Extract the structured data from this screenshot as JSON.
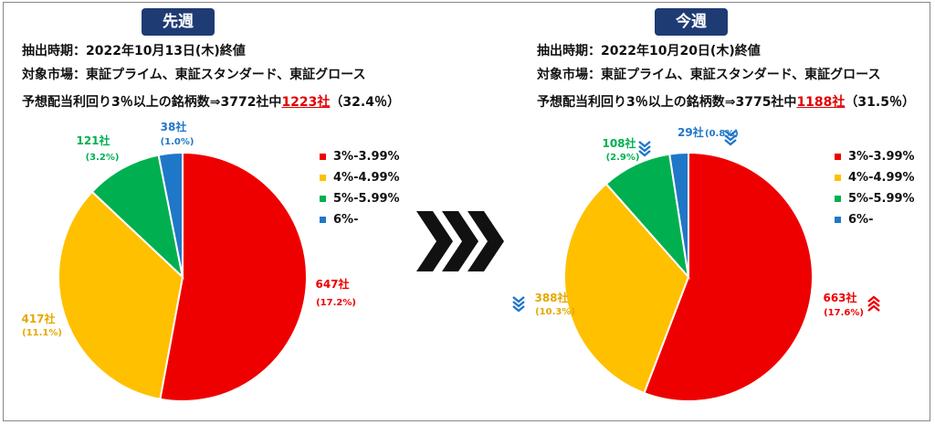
{
  "left": {
    "badge": "先週",
    "date_line": "抽出時期：2022年10月13日(木)終値",
    "market_line": "対象市場：東証プライム、東証スタンダード、東証グロース",
    "count_prefix": "予想配当利回り3％以上の銘柄数⇒3772社中",
    "count_highlight": "1223社",
    "count_suffix": "（32.4％）"
  },
  "right": {
    "badge": "今週",
    "date_line": "抽出時期：2022年10月20日(木)終値",
    "market_line": "対象市場：東証プライム、東証スタンダード、東証グロース",
    "count_prefix": "予想配当利回り3％以上の銘柄数⇒3775社中",
    "count_highlight": "1188社",
    "count_suffix": "（31.5％）"
  },
  "legend": [
    {
      "label": "3%-3.99%",
      "color": "#ee0000"
    },
    {
      "label": "4%-4.99%",
      "color": "#ffc000"
    },
    {
      "label": "5%-5.99%",
      "color": "#00b050"
    },
    {
      "label": "6%-",
      "color": "#1f77c8"
    }
  ],
  "chart_data": [
    {
      "type": "pie",
      "title": "先週",
      "categories": [
        "3%-3.99%",
        "4%-4.99%",
        "5%-5.99%",
        "6%-"
      ],
      "values": [
        647,
        417,
        121,
        38
      ],
      "labels": [
        "647社",
        "417社",
        "121社",
        "38社"
      ],
      "sublabels": [
        "(17.2%)",
        "(11.1%)",
        "(3.2%)",
        "(1.0%)"
      ],
      "colors": [
        "#ee0000",
        "#ffc000",
        "#00b050",
        "#1f77c8"
      ],
      "legend_position": "right"
    },
    {
      "type": "pie",
      "title": "今週",
      "categories": [
        "3%-3.99%",
        "4%-4.99%",
        "5%-5.99%",
        "6%-"
      ],
      "values": [
        663,
        388,
        108,
        29
      ],
      "labels": [
        "663社",
        "388社",
        "108社",
        "29社"
      ],
      "sublabels": [
        "(17.6%)",
        "(10.3%)",
        "(2.9%)",
        "(0.8%)"
      ],
      "colors": [
        "#ee0000",
        "#ffc000",
        "#00b050",
        "#1f77c8"
      ],
      "trend": [
        "up",
        "down",
        "down",
        "down"
      ],
      "legend_position": "right"
    }
  ]
}
